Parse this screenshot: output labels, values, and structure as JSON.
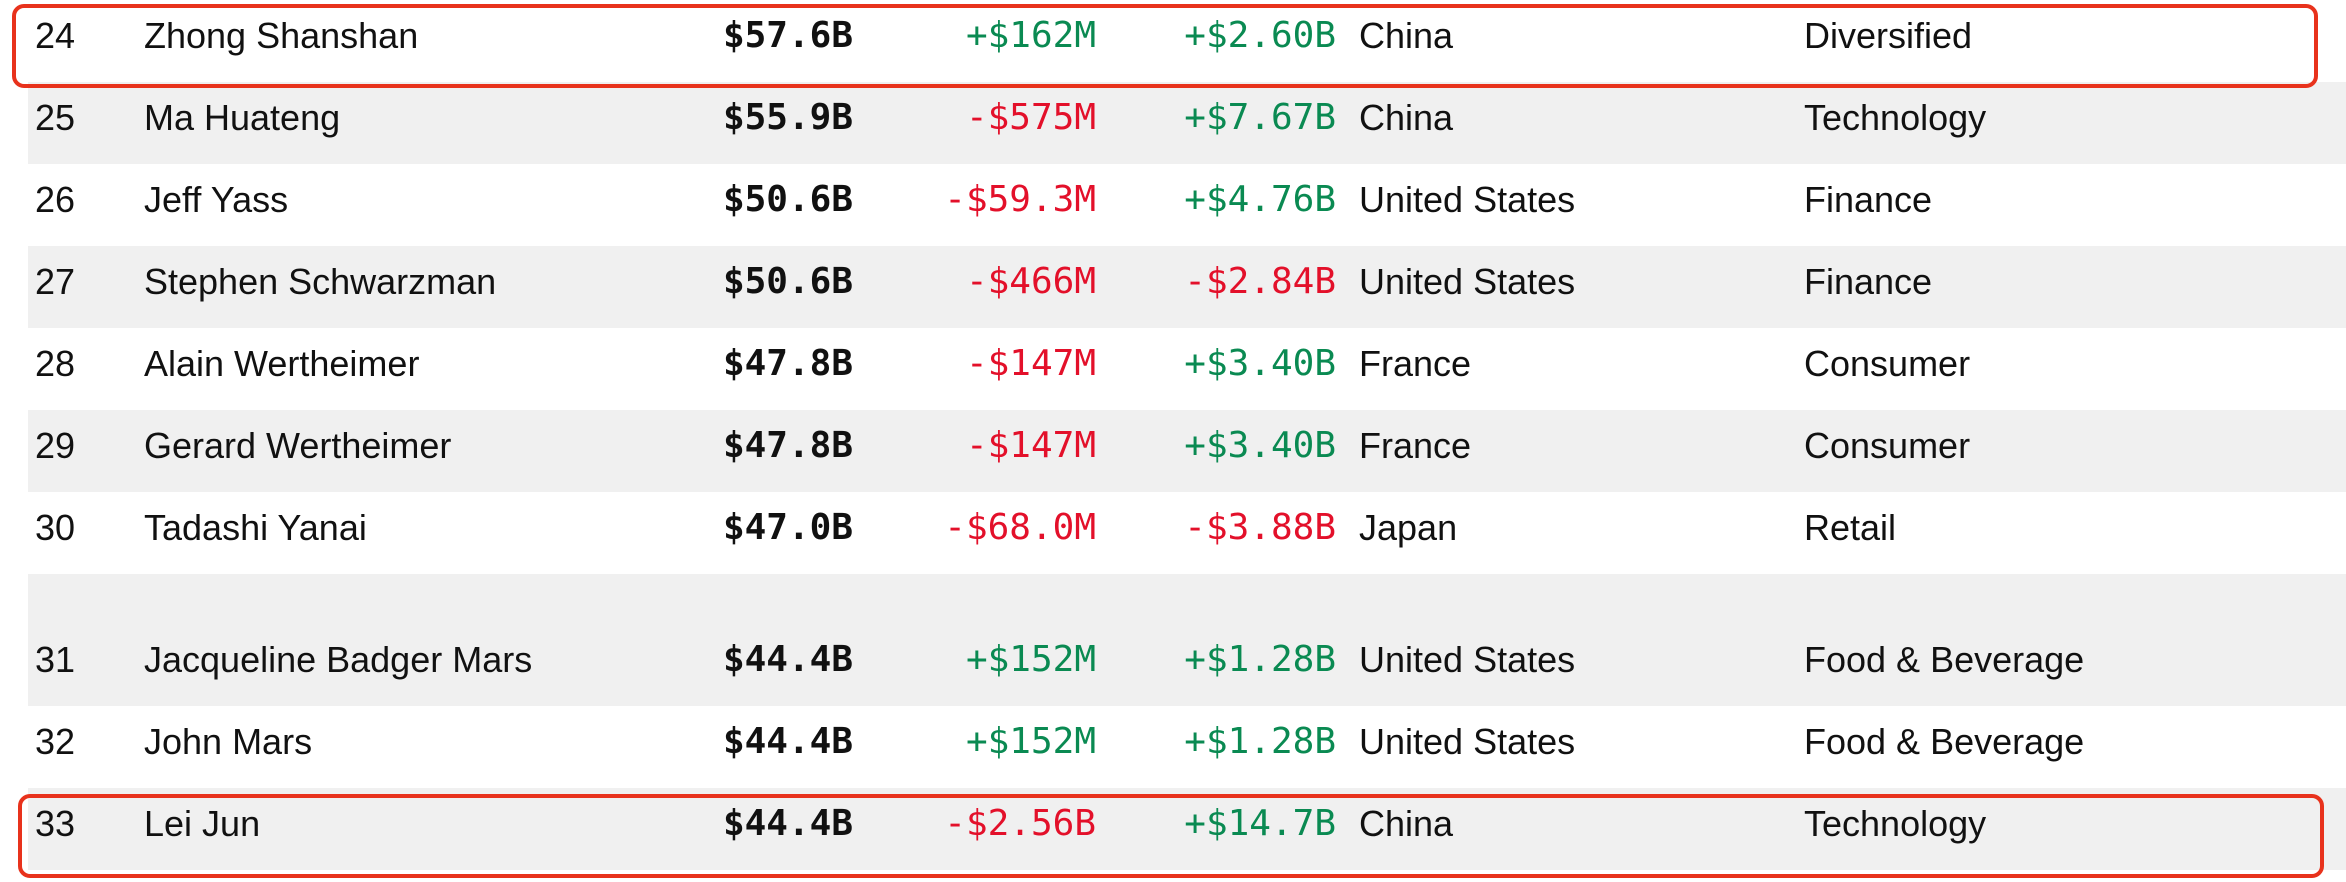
{
  "rows": [
    {
      "rank": "24",
      "name": "Zhong Shanshan",
      "worth": "$57.6B",
      "day": "+$162M",
      "ytd": "+$2.60B",
      "country": "China",
      "industry": "Diversified"
    },
    {
      "rank": "25",
      "name": "Ma Huateng",
      "worth": "$55.9B",
      "day": "-$575M",
      "ytd": "+$7.67B",
      "country": "China",
      "industry": "Technology"
    },
    {
      "rank": "26",
      "name": "Jeff Yass",
      "worth": "$50.6B",
      "day": "-$59.3M",
      "ytd": "+$4.76B",
      "country": "United States",
      "industry": "Finance"
    },
    {
      "rank": "27",
      "name": "Stephen Schwarzman",
      "worth": "$50.6B",
      "day": "-$466M",
      "ytd": "-$2.84B",
      "country": "United States",
      "industry": "Finance"
    },
    {
      "rank": "28",
      "name": "Alain Wertheimer",
      "worth": "$47.8B",
      "day": "-$147M",
      "ytd": "+$3.40B",
      "country": "France",
      "industry": "Consumer"
    },
    {
      "rank": "29",
      "name": "Gerard Wertheimer",
      "worth": "$47.8B",
      "day": "-$147M",
      "ytd": "+$3.40B",
      "country": "France",
      "industry": "Consumer"
    },
    {
      "rank": "30",
      "name": "Tadashi Yanai",
      "worth": "$47.0B",
      "day": "-$68.0M",
      "ytd": "-$3.88B",
      "country": "Japan",
      "industry": "Retail"
    },
    {
      "rank": "31",
      "name": "Jacqueline Badger Mars",
      "worth": "$44.4B",
      "day": "+$152M",
      "ytd": "+$1.28B",
      "country": "United States",
      "industry": "Food & Beverage"
    },
    {
      "rank": "32",
      "name": "John Mars",
      "worth": "$44.4B",
      "day": "+$152M",
      "ytd": "+$1.28B",
      "country": "United States",
      "industry": "Food & Beverage"
    },
    {
      "rank": "33",
      "name": "Lei Jun",
      "worth": "$44.4B",
      "day": "-$2.56B",
      "ytd": "+$14.7B",
      "country": "China",
      "industry": "Technology"
    }
  ],
  "colors": {
    "positive": "#0a8a52",
    "negative": "#e3102a",
    "highlight": "#e8321c",
    "row_shade": "#f0f0f0"
  },
  "highlighted_rows": [
    "24",
    "33"
  ]
}
